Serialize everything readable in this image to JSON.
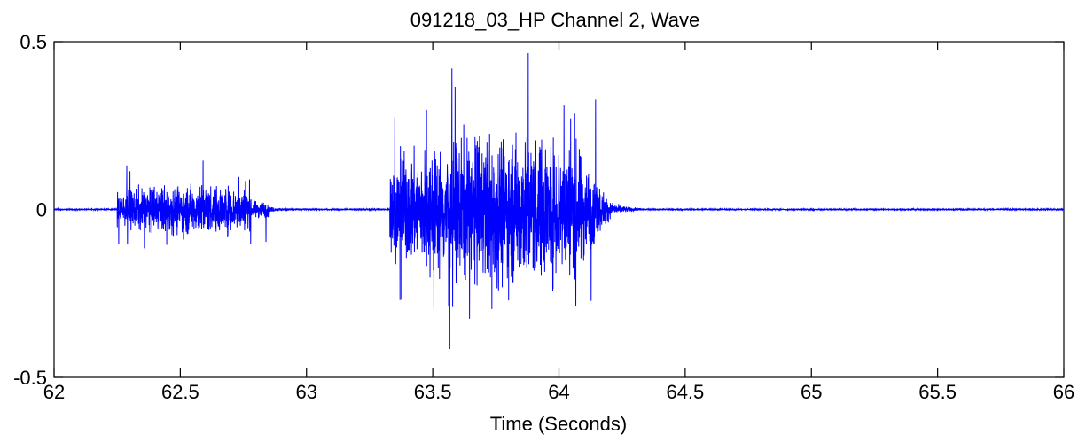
{
  "chart_data": {
    "type": "line",
    "title": "091218_03_HP Channel 2, Wave",
    "xlabel": "Time (Seconds)",
    "ylabel": "",
    "xlim": [
      62,
      66
    ],
    "ylim": [
      -0.5,
      0.5
    ],
    "x_ticks": [
      62,
      62.5,
      63,
      63.5,
      64,
      64.5,
      65,
      65.5,
      66
    ],
    "x_tick_labels": [
      "62",
      "62.5",
      "63",
      "63.5",
      "64",
      "64.5",
      "65",
      "65.5",
      "66"
    ],
    "y_ticks": [
      -0.5,
      0,
      0.5
    ],
    "y_tick_labels": [
      "-0.5",
      "0",
      "0.5"
    ],
    "grid": false,
    "series": [
      {
        "color": "#0000ff",
        "bursts": [
          {
            "start": 62.25,
            "end": 62.85,
            "max_positive": 0.15,
            "max_negative": -0.16
          },
          {
            "start": 63.33,
            "end": 64.2,
            "max_positive": 0.48,
            "max_negative": -0.45
          }
        ],
        "baseline": 0
      }
    ]
  }
}
